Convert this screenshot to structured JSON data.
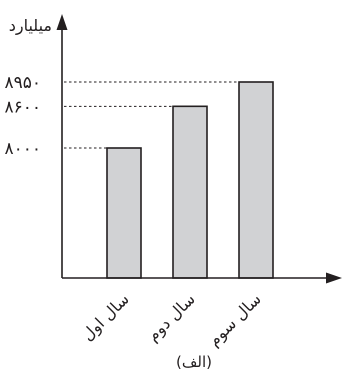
{
  "chart_data": {
    "type": "bar",
    "categories": [
      "سال اول",
      "سال دوم",
      "سال سوم"
    ],
    "values": [
      8000,
      8600,
      8950
    ],
    "value_labels": [
      "۸۰۰۰",
      "۸۶۰۰",
      "۸۹۵۰"
    ],
    "ylabel": "میلیارد",
    "caption": "(الف)",
    "xlabel": "",
    "grid": false,
    "axis_break": true,
    "colors": {
      "bar_fill": "#d1d2d4",
      "ink": "#231f20"
    }
  }
}
